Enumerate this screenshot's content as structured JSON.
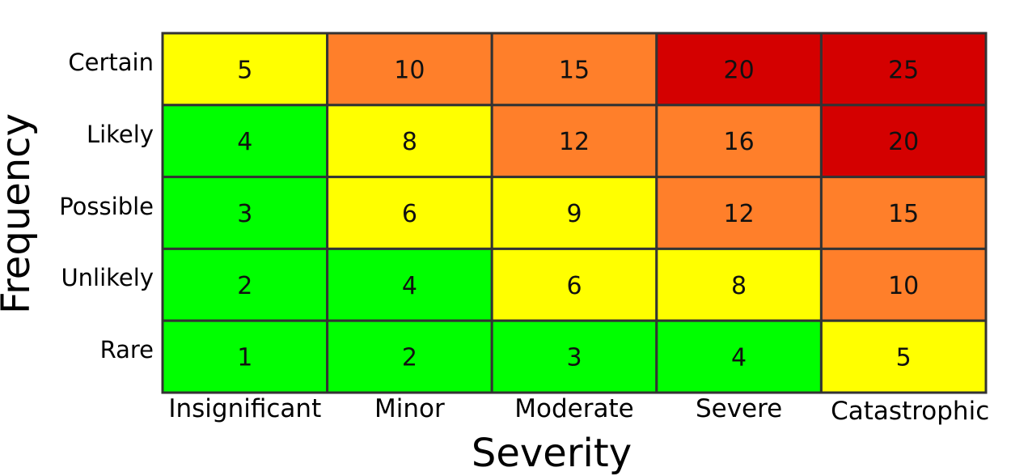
{
  "chart_data": {
    "type": "heatmap",
    "title": "",
    "xlabel": "Severity",
    "ylabel": "Frequency",
    "columns": [
      "Insignificant",
      "Minor",
      "Moderate",
      "Severe",
      "Catastrophic"
    ],
    "rows": [
      "Certain",
      "Likely",
      "Possible",
      "Unlikely",
      "Rare"
    ],
    "values": [
      [
        5,
        10,
        15,
        20,
        25
      ],
      [
        4,
        8,
        12,
        16,
        20
      ],
      [
        3,
        6,
        9,
        12,
        15
      ],
      [
        2,
        4,
        6,
        8,
        10
      ],
      [
        1,
        2,
        3,
        4,
        5
      ]
    ],
    "cell_colors": [
      [
        "#ffff00",
        "#ff7f2a",
        "#ff7f2a",
        "#d40000",
        "#d40000"
      ],
      [
        "#00ff00",
        "#ffff00",
        "#ff7f2a",
        "#ff7f2a",
        "#d40000"
      ],
      [
        "#00ff00",
        "#ffff00",
        "#ffff00",
        "#ff7f2a",
        "#ff7f2a"
      ],
      [
        "#00ff00",
        "#00ff00",
        "#ffff00",
        "#ffff00",
        "#ff7f2a"
      ],
      [
        "#00ff00",
        "#00ff00",
        "#00ff00",
        "#00ff00",
        "#ffff00"
      ]
    ],
    "grid_color": "#333333"
  }
}
